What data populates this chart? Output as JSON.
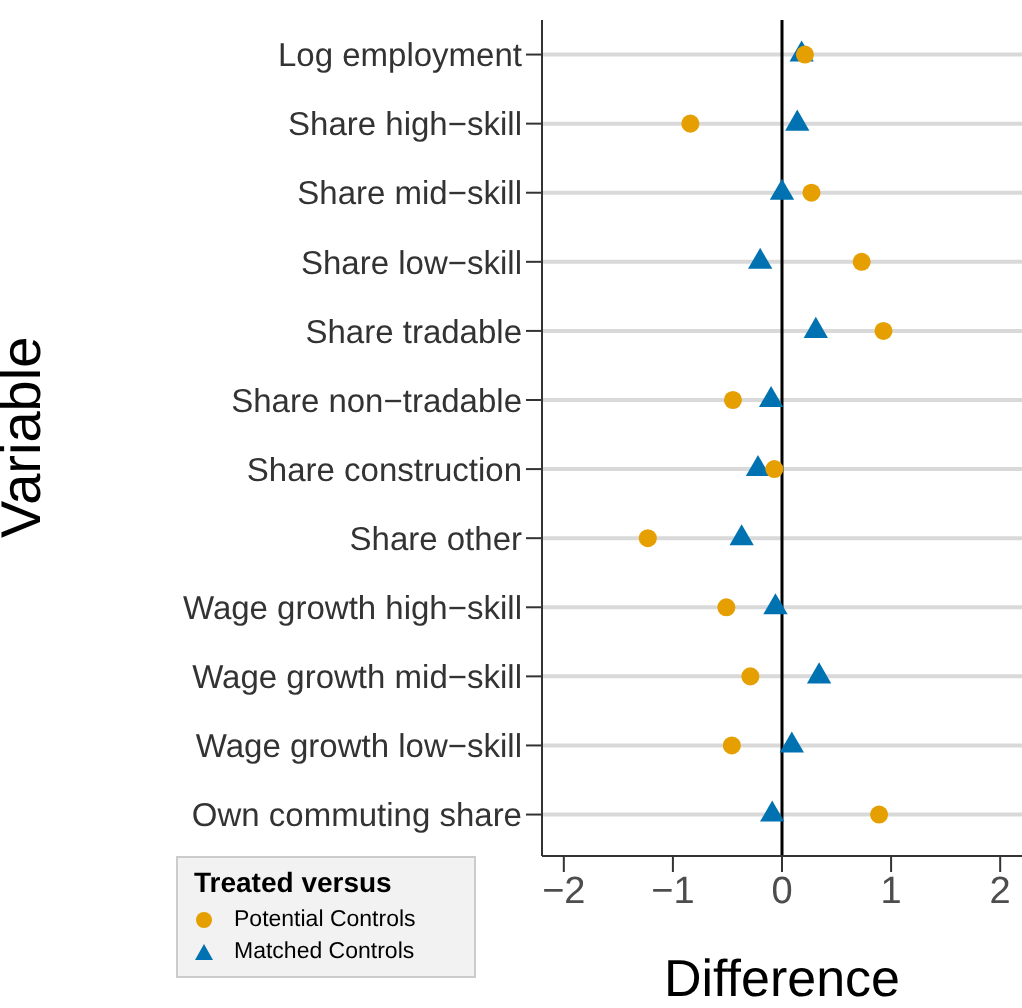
{
  "chart_data": {
    "type": "scatter",
    "orientation": "horizontal",
    "xlabel": "Difference",
    "ylabel": "Variable",
    "legend_title": "Treated versus",
    "legend": "bottom left",
    "grid": "y",
    "categories": [
      "Log employment",
      "Share high−skill",
      "Share mid−skill",
      "Share low−skill",
      "Share tradable",
      "Share non−tradable",
      "Share construction",
      "Share other",
      "Wage growth high−skill",
      "Wage growth mid−skill",
      "Wage growth low−skill",
      "Own commuting share"
    ],
    "xlim": [
      -2.2,
      2.2
    ],
    "xticks": [
      {
        "value": -2,
        "label": "−2"
      },
      {
        "value": -1,
        "label": "−1"
      },
      0,
      1,
      2
    ],
    "ref_lines": [
      {
        "axis": "x",
        "value": 0,
        "color": "#000000"
      }
    ],
    "series": [
      {
        "name": "Potential Controls",
        "color": "#e69f00",
        "marker": "circle",
        "values": [
          0.21,
          -0.84,
          0.27,
          0.73,
          0.93,
          -0.45,
          -0.07,
          -1.23,
          -0.51,
          -0.29,
          -0.46,
          0.89
        ]
      },
      {
        "name": "Matched Controls",
        "color": "#0072b2",
        "marker": "triangle",
        "values": [
          0.18,
          0.14,
          0.0,
          -0.2,
          0.31,
          -0.1,
          -0.22,
          -0.37,
          -0.06,
          0.34,
          0.09,
          -0.09
        ]
      }
    ]
  }
}
